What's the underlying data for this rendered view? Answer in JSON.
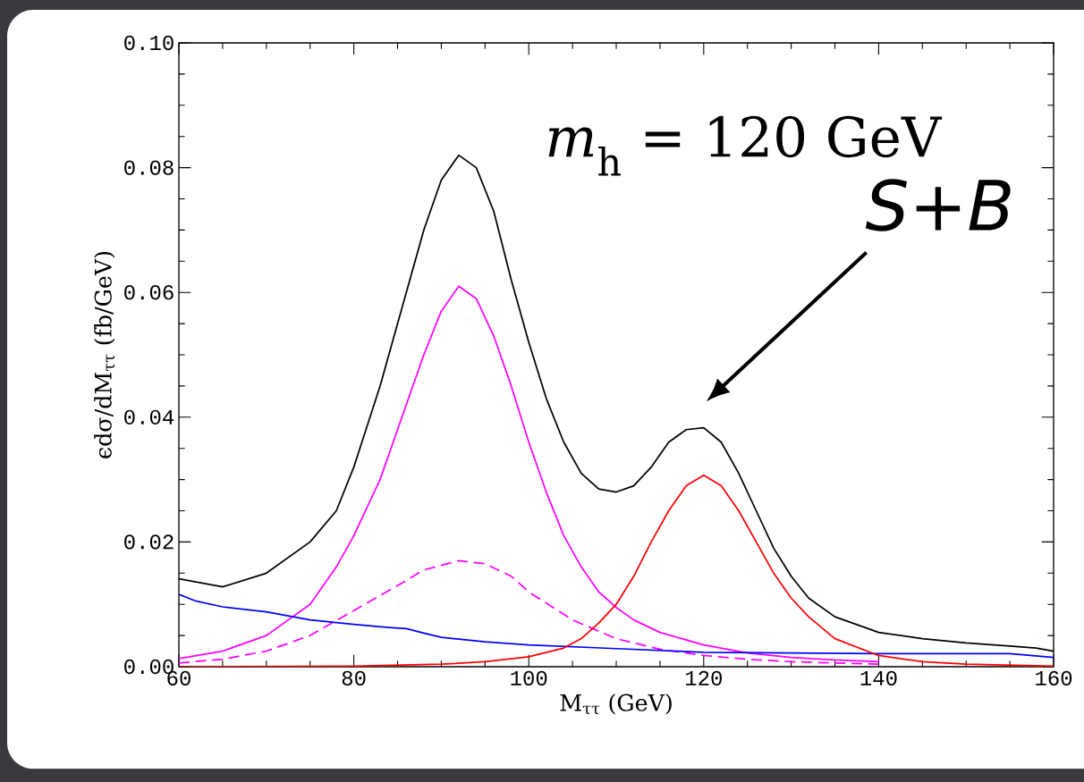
{
  "chart_data": {
    "type": "line",
    "xlabel": "M$_{ττ}$ (GeV)",
    "ylabel": "ϵdσ/dM$_{ττ}$ (fb/GeV)",
    "xlim": [
      60,
      160
    ],
    "ylim": [
      0,
      0.1
    ],
    "xticks": [
      60,
      80,
      100,
      120,
      140,
      160
    ],
    "yticks": [
      {
        "value": 0,
        "label": "0.00"
      },
      {
        "value": 0.02,
        "label": "0.02"
      },
      {
        "value": 0.04,
        "label": "0.04"
      },
      {
        "value": 0.06,
        "label": "0.06"
      },
      {
        "value": 0.08,
        "label": "0.08"
      },
      {
        "value": 0.1,
        "label": "0.10"
      }
    ],
    "annotations": [
      "*m*$_{h}$ = 120 GeV",
      "S+B"
    ],
    "series": [
      {
        "color": "#000000",
        "line_style": "solid",
        "x": [
          60,
          65,
          70,
          75,
          78,
          80,
          83,
          86,
          88,
          90,
          92,
          94,
          96,
          98,
          100,
          102,
          104,
          106,
          108,
          110,
          112,
          114,
          116,
          118,
          120,
          122,
          124,
          126,
          128,
          130,
          132,
          135,
          140,
          145,
          150,
          155,
          158,
          160
        ],
        "values": [
          0.0141,
          0.0128,
          0.015,
          0.02,
          0.025,
          0.032,
          0.045,
          0.06,
          0.07,
          0.078,
          0.082,
          0.08,
          0.073,
          0.062,
          0.052,
          0.043,
          0.036,
          0.031,
          0.0285,
          0.028,
          0.029,
          0.032,
          0.036,
          0.038,
          0.0383,
          0.036,
          0.031,
          0.025,
          0.019,
          0.0145,
          0.011,
          0.008,
          0.0055,
          0.0045,
          0.0038,
          0.0033,
          0.003,
          0.0025
        ]
      },
      {
        "color": "#ff00ff",
        "line_style": "solid",
        "x": [
          60,
          65,
          70,
          75,
          78,
          80,
          83,
          86,
          88,
          90,
          92,
          94,
          96,
          98,
          100,
          102,
          104,
          106,
          108,
          110,
          112,
          115,
          120,
          125,
          130,
          135,
          140
        ],
        "values": [
          0.0013,
          0.0025,
          0.005,
          0.01,
          0.016,
          0.021,
          0.03,
          0.042,
          0.05,
          0.057,
          0.061,
          0.059,
          0.053,
          0.045,
          0.036,
          0.028,
          0.021,
          0.016,
          0.012,
          0.0095,
          0.0075,
          0.0055,
          0.0035,
          0.0022,
          0.0015,
          0.0011,
          0.0008
        ]
      },
      {
        "color": "#ff00ff",
        "line_style": "dashed",
        "x": [
          60,
          65,
          70,
          75,
          80,
          85,
          88,
          92,
          95,
          98,
          100,
          105,
          110,
          115,
          120,
          125,
          130,
          135,
          140
        ],
        "values": [
          0.0006,
          0.0012,
          0.0025,
          0.005,
          0.009,
          0.013,
          0.0155,
          0.017,
          0.0165,
          0.0145,
          0.012,
          0.0075,
          0.0045,
          0.0028,
          0.0018,
          0.0012,
          0.0008,
          0.0006,
          0.0004
        ]
      },
      {
        "color": "#0000ff",
        "line_style": "solid",
        "x": [
          60,
          62,
          65,
          70,
          75,
          80,
          84,
          86,
          88,
          90,
          95,
          100,
          110,
          120,
          130,
          140,
          150,
          155,
          160
        ],
        "values": [
          0.0116,
          0.0105,
          0.0096,
          0.0088,
          0.0075,
          0.0068,
          0.0063,
          0.0061,
          0.0054,
          0.0047,
          0.004,
          0.0035,
          0.0029,
          0.0023,
          0.0022,
          0.0021,
          0.0021,
          0.0021,
          0.0015
        ]
      },
      {
        "color": "#ff0000",
        "line_style": "solid",
        "x": [
          60,
          80,
          90,
          95,
          100,
          104,
          106,
          108,
          110,
          112,
          114,
          116,
          118,
          120,
          122,
          124,
          126,
          128,
          130,
          132,
          135,
          140,
          145,
          150,
          160
        ],
        "values": [
          0,
          0.0001,
          0.0004,
          0.0008,
          0.0016,
          0.003,
          0.0045,
          0.007,
          0.01,
          0.0145,
          0.02,
          0.025,
          0.029,
          0.0307,
          0.029,
          0.025,
          0.02,
          0.015,
          0.011,
          0.008,
          0.0045,
          0.0018,
          0.0008,
          0.0004,
          0.0001
        ]
      }
    ]
  }
}
